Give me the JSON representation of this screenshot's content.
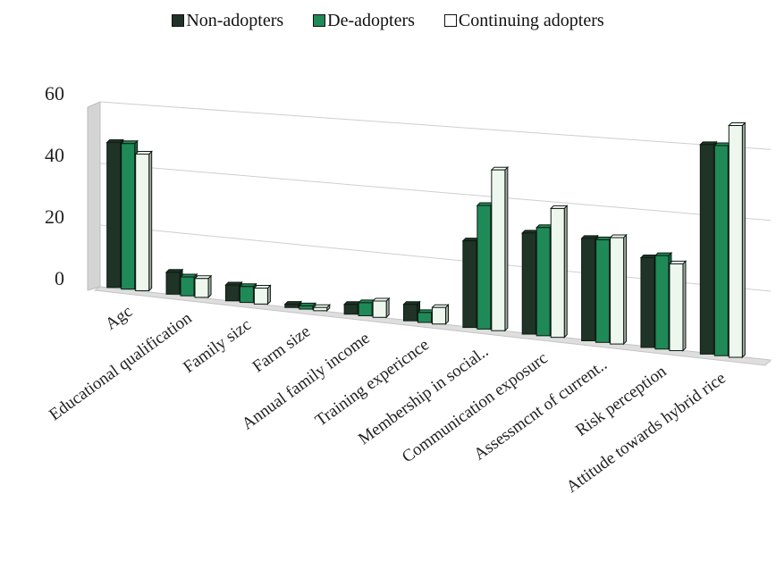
{
  "chart_data": {
    "type": "bar",
    "title": "",
    "xlabel": "",
    "ylabel": "",
    "ylim": [
      0,
      60
    ],
    "yticks": [
      "0",
      "20",
      "40",
      "60"
    ],
    "legend_position": "top",
    "gridlines": true,
    "categories": [
      "Agc",
      "Educational qualification",
      "Family sizc",
      "Farm size",
      "Annual family income",
      "Training expericnce",
      "Membership in social..",
      "Communication exposurc",
      "Assessmcnt of current..",
      "Risk perception",
      "Attitude towards hybrid rice"
    ],
    "series": [
      {
        "name": "Non-adopters",
        "color": "#1f3326",
        "values": [
          47,
          7,
          5,
          1,
          3,
          5,
          26,
          30,
          30,
          26,
          60
        ]
      },
      {
        "name": "De-adopters",
        "color": "#1f8a57",
        "values": [
          47,
          6,
          5,
          1,
          4,
          3,
          37,
          32,
          30,
          27,
          60
        ]
      },
      {
        "name": "Continuing adopters",
        "color": "#eef7ee",
        "values": [
          44,
          6,
          5,
          1,
          5,
          5,
          48,
          38,
          31,
          25,
          66
        ]
      }
    ]
  }
}
